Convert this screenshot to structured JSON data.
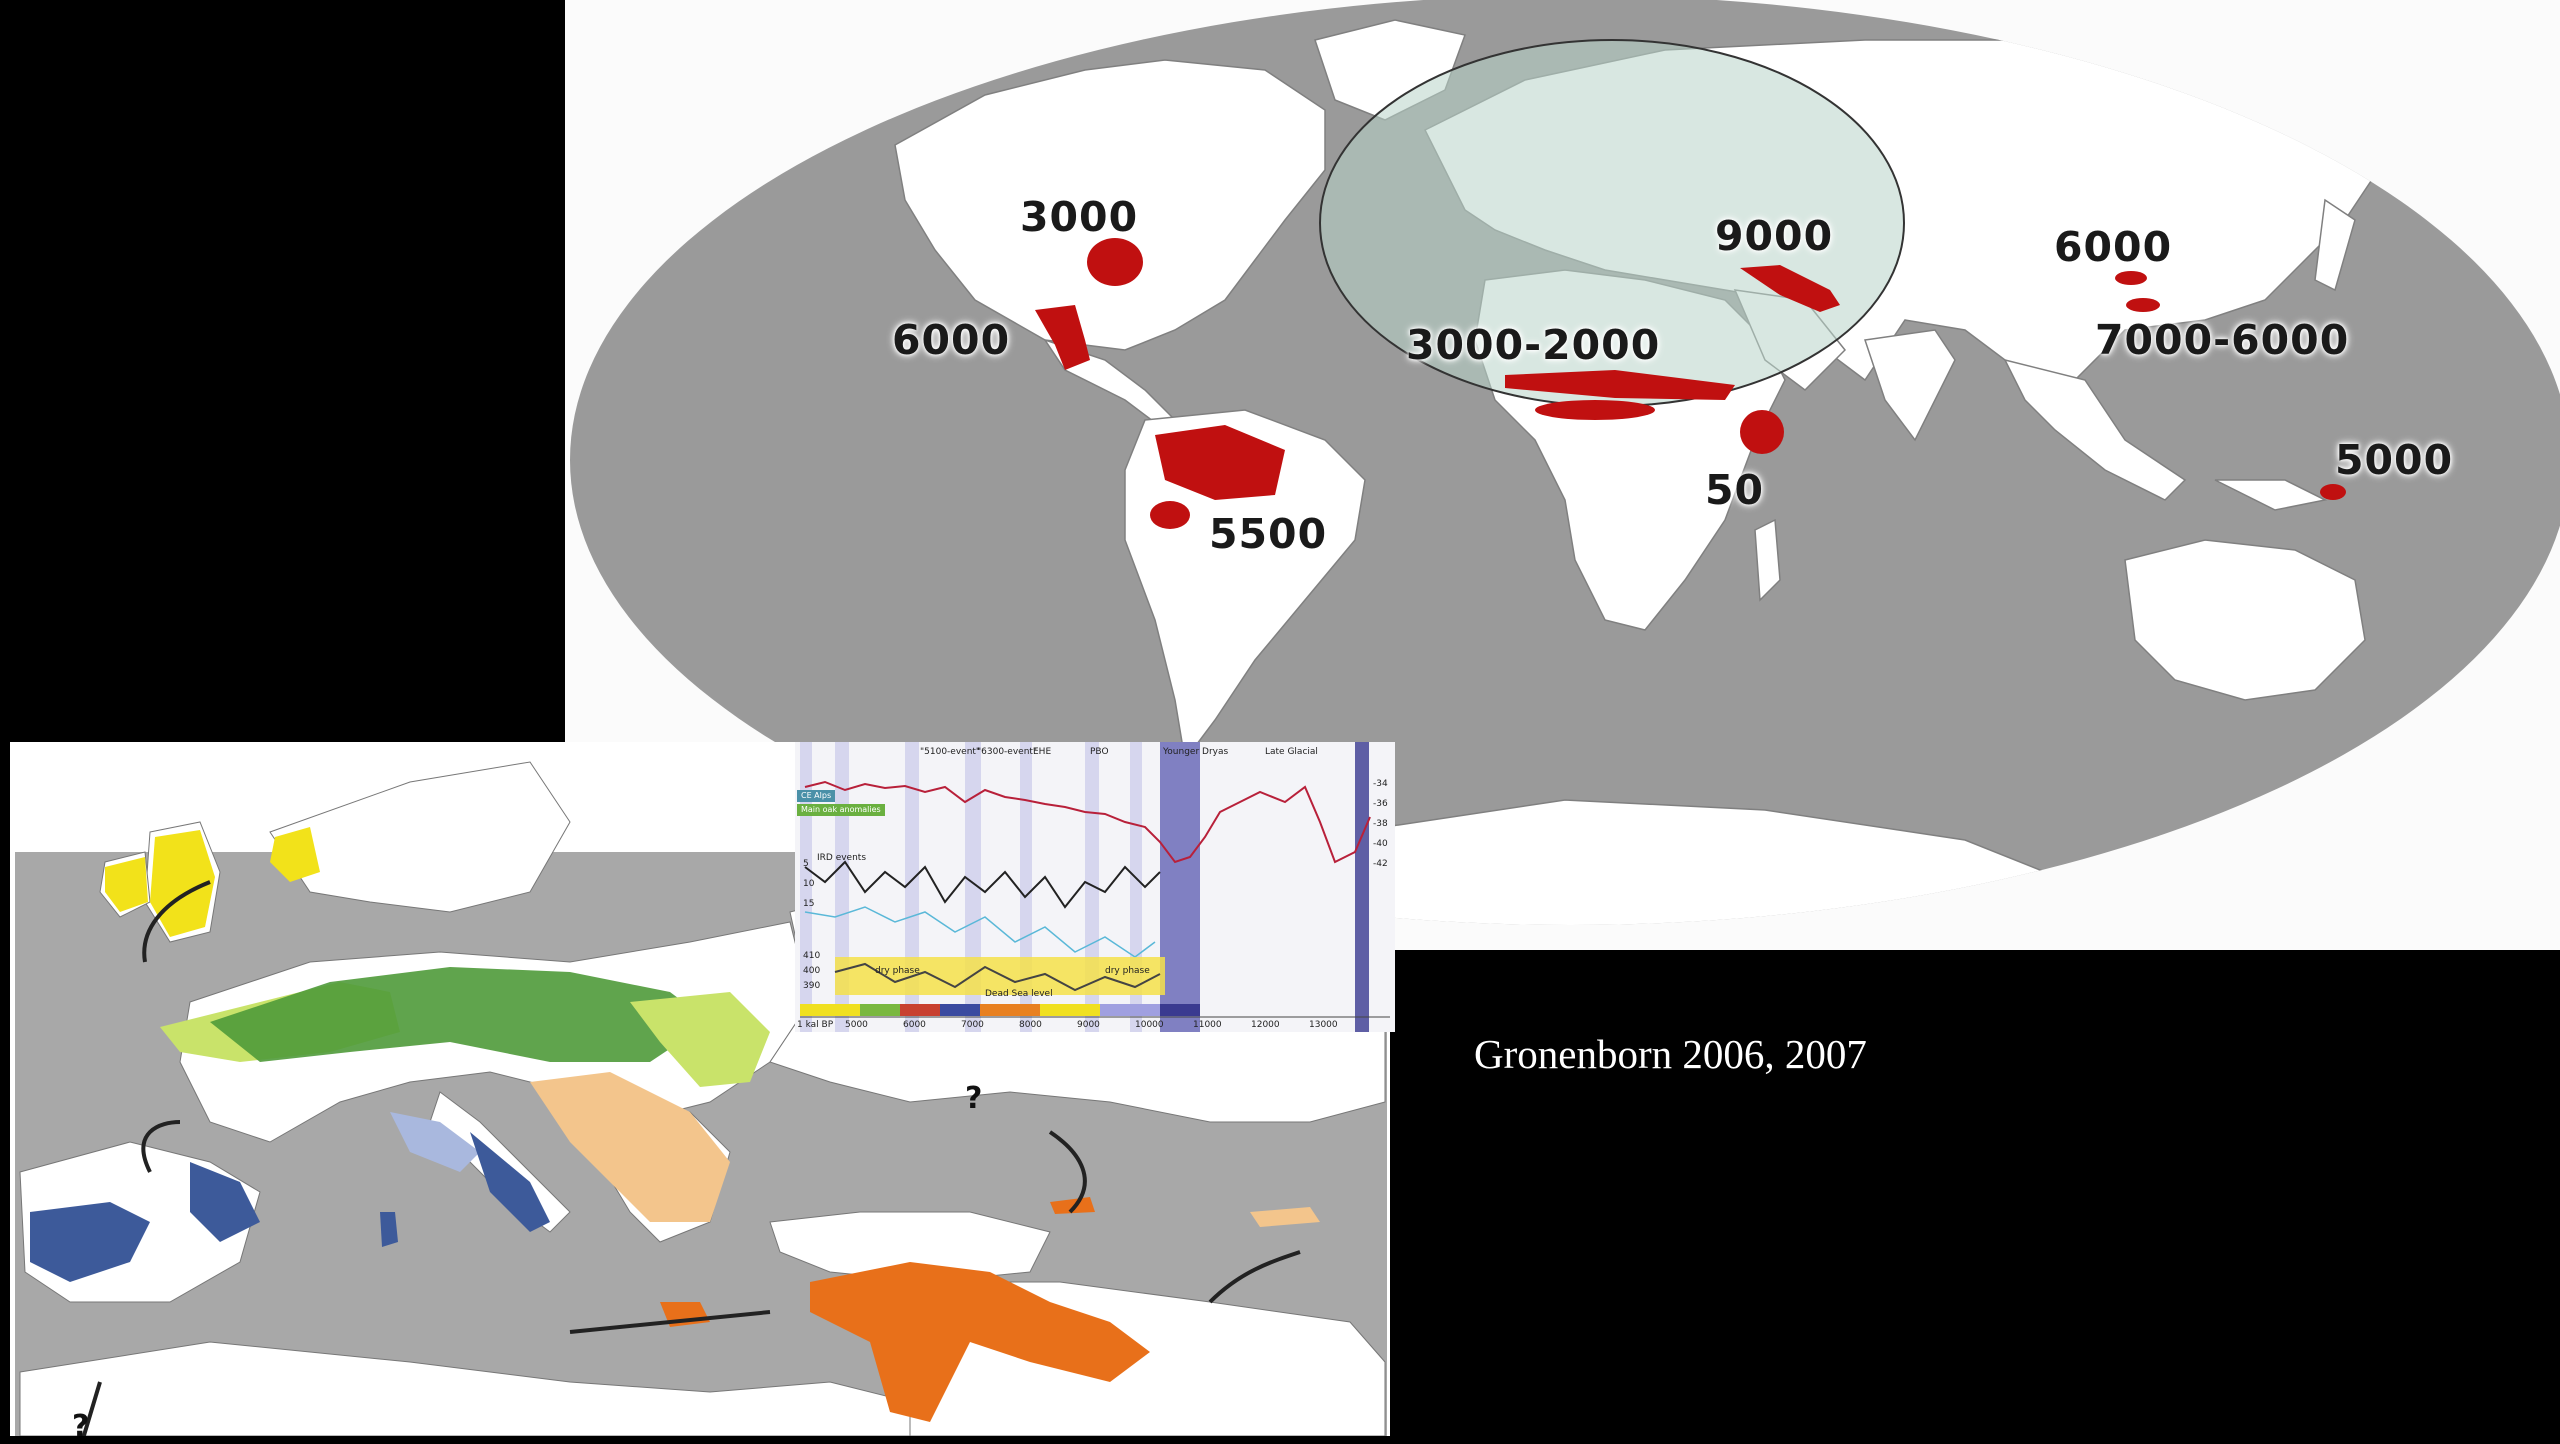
{
  "world_map": {
    "labels": [
      {
        "id": "na-east",
        "text": "3000"
      },
      {
        "id": "mesoamerica",
        "text": "6000"
      },
      {
        "id": "amazonia",
        "text": "5500"
      },
      {
        "id": "near-east",
        "text": "9000"
      },
      {
        "id": "sahel",
        "text": "3000-2000"
      },
      {
        "id": "east-africa",
        "text": "50"
      },
      {
        "id": "north-china",
        "text": "6000"
      },
      {
        "id": "south-china",
        "text": "7000-6000"
      },
      {
        "id": "new-guinea",
        "text": "5000"
      }
    ],
    "colors": {
      "ocean": "#9a9a9a",
      "land": "#ffffff",
      "origin_area": "#c01010",
      "highlight_circle": "#b8d4c8"
    }
  },
  "europe_map": {
    "question_marks": [
      "?",
      "?"
    ],
    "colors": {
      "yellow": "#f2e21a",
      "green": "#4f9a3a",
      "light_green": "#c9e36a",
      "tan": "#f3c58c",
      "orange": "#e8701a",
      "navy": "#3d5a9a",
      "light_blue": "#a9b8de",
      "sea": "#a8a8a8"
    }
  },
  "climate_chart": {
    "legend": [
      "CE Alps",
      "Main oak anomalies"
    ],
    "headers": [
      "\"5100-event\"",
      "\"6300-event\"",
      "EHE",
      "PBO",
      "Younger Dryas",
      "Late Glacial"
    ],
    "left_axis_ticks": [
      "5",
      "10",
      "15"
    ],
    "right_axis_ticks": [
      "-34",
      "-36",
      "-38",
      "-40",
      "-42"
    ],
    "level_axis_ticks": [
      "410",
      "400",
      "390"
    ],
    "bottom_axis": [
      "1 kal BP",
      "5000",
      "6000",
      "7000",
      "8000",
      "9000",
      "10000",
      "11000",
      "12000",
      "13000"
    ],
    "annotations": [
      "IRD events",
      "dry phase",
      "dry phase",
      "Dead Sea level"
    ]
  },
  "citation": "Gronenborn 2006, 2007"
}
